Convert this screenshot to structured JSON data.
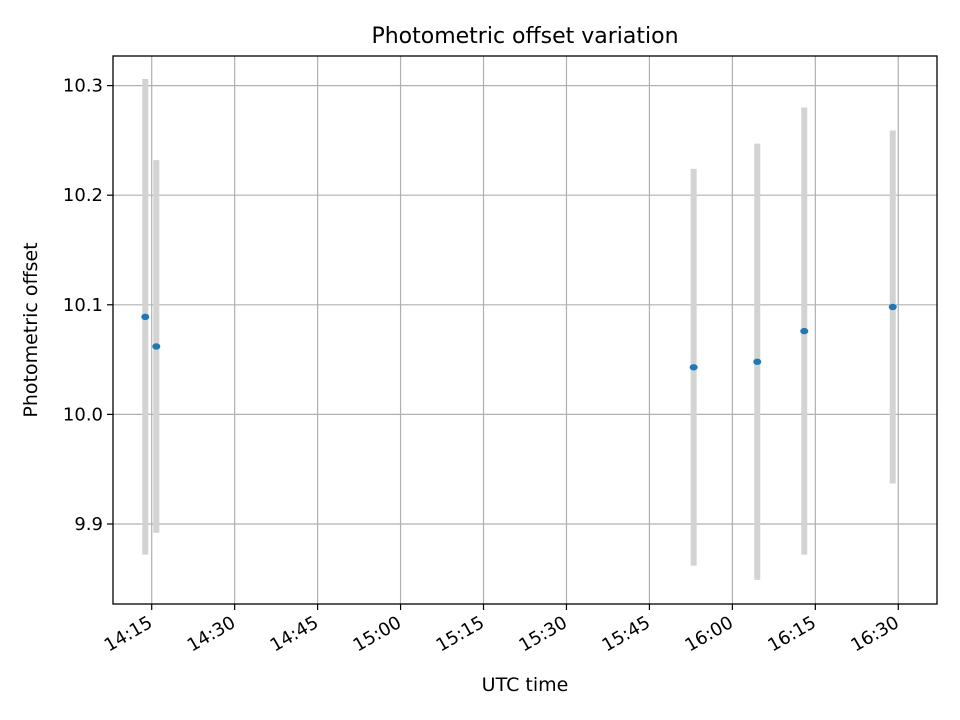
{
  "chart_data": {
    "type": "scatter",
    "title": "Photometric offset variation",
    "xlabel": "UTC time",
    "ylabel": "Photometric offset",
    "x_axis_kind": "time",
    "xlim": [
      "14:08",
      "16:37"
    ],
    "ylim": [
      9.827,
      10.327
    ],
    "x_ticks": [
      "14:15",
      "14:30",
      "14:45",
      "15:00",
      "15:15",
      "15:30",
      "15:45",
      "16:00",
      "16:15",
      "16:30"
    ],
    "y_ticks": [
      "9.9",
      "10.0",
      "10.1",
      "10.2",
      "10.3"
    ],
    "grid": true,
    "errorbar_color": "#d3d3d3",
    "marker_color": "#1f77b4",
    "series": [
      {
        "points": [
          {
            "x": "14:13:50",
            "y": 10.089,
            "y_low": 9.872,
            "y_high": 10.306
          },
          {
            "x": "14:15:50",
            "y": 10.062,
            "y_low": 9.892,
            "y_high": 10.232
          },
          {
            "x": "15:53:00",
            "y": 10.043,
            "y_low": 9.862,
            "y_high": 10.224
          },
          {
            "x": "16:04:30",
            "y": 10.048,
            "y_low": 9.849,
            "y_high": 10.247
          },
          {
            "x": "16:13:00",
            "y": 10.076,
            "y_low": 9.872,
            "y_high": 10.28
          },
          {
            "x": "16:29:00",
            "y": 10.098,
            "y_low": 9.937,
            "y_high": 10.259
          }
        ]
      }
    ]
  }
}
